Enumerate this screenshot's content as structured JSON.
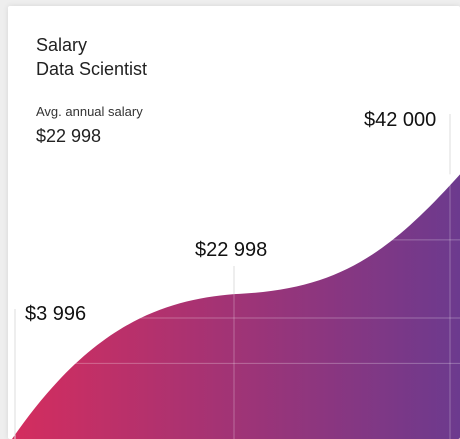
{
  "card": {
    "title": "Salary",
    "subtitle": "Data Scientist",
    "avg_label": "Avg. annual salary",
    "avg_value": "$22 998"
  },
  "colors": {
    "gradient_start": "#d42d5e",
    "gradient_end": "#6c3a8e",
    "grid": "#ffffff",
    "marker_line": "#dddddd"
  },
  "chart_data": {
    "type": "area",
    "x": [
      0,
      1,
      2
    ],
    "values": [
      3996,
      22998,
      42000
    ],
    "labels": [
      "$3 996",
      "$22 998",
      "$42 000"
    ],
    "title": "Salary",
    "subtitle": "Data Scientist",
    "xlabel": "",
    "ylabel": "",
    "ylim": [
      0,
      48000
    ],
    "grid": true,
    "legend": "none",
    "curve": "smooth"
  }
}
